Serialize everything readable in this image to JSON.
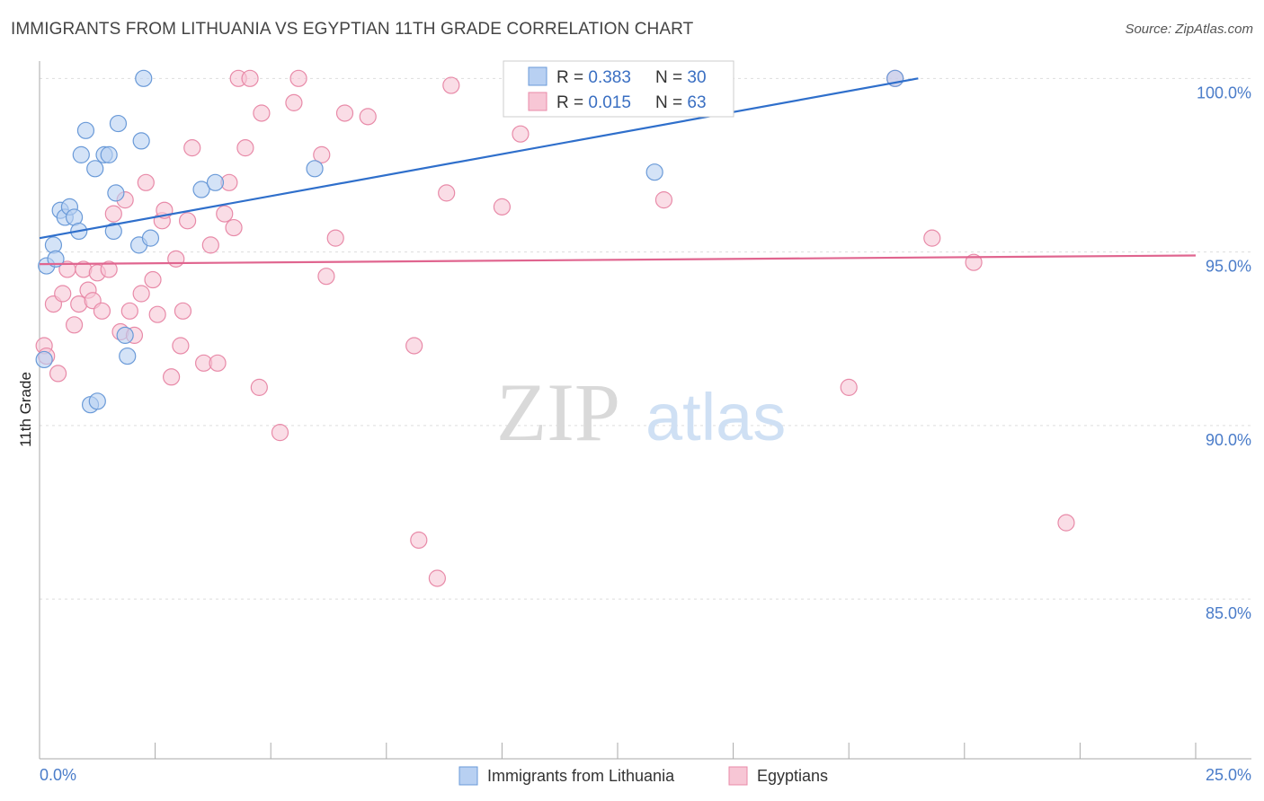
{
  "title": "IMMIGRANTS FROM LITHUANIA VS EGYPTIAN 11TH GRADE CORRELATION CHART",
  "source": "Source: ZipAtlas.com",
  "watermark": {
    "zip": "ZIP",
    "atlas": "atlas"
  },
  "colors": {
    "blue_fill": "#b8d0f2",
    "blue_stroke": "#6a9ad8",
    "blue_line": "#2f6fcb",
    "pink_fill": "#f7c6d5",
    "pink_stroke": "#e88aa8",
    "pink_line": "#e0658f",
    "grid": "#dddddd",
    "tick_text": "#4a7cc9"
  },
  "legend": {
    "rows": [
      {
        "r_label": "R = ",
        "r_value": "0.383",
        "n_label": "N = ",
        "n_value": "30"
      },
      {
        "r_label": "R = ",
        "r_value": "0.015",
        "n_label": "N = ",
        "n_value": "63"
      }
    ]
  },
  "chart_data": {
    "type": "scatter",
    "title": "IMMIGRANTS FROM LITHUANIA VS EGYPTIAN 11TH GRADE CORRELATION CHART",
    "xlabel": "",
    "ylabel": "11th Grade",
    "xlim": [
      0,
      25
    ],
    "ylim": [
      80.4,
      100.5
    ],
    "x_tick_labels": [
      "0.0%",
      "25.0%"
    ],
    "y_ticks": [
      85,
      90,
      95,
      100
    ],
    "y_tick_labels": [
      "85.0%",
      "90.0%",
      "95.0%",
      "100.0%"
    ],
    "grid": true,
    "legend_position": "top-center",
    "series": [
      {
        "name": "Immigrants from Lithuania",
        "r": 0.383,
        "n": 30,
        "trend": {
          "x": [
            0,
            19.0
          ],
          "y": [
            95.4,
            100.0
          ]
        },
        "points": [
          {
            "x": 0.1,
            "y": 91.9
          },
          {
            "x": 0.15,
            "y": 94.6
          },
          {
            "x": 0.3,
            "y": 95.2
          },
          {
            "x": 0.35,
            "y": 94.8
          },
          {
            "x": 0.45,
            "y": 96.2
          },
          {
            "x": 0.55,
            "y": 96.0
          },
          {
            "x": 0.65,
            "y": 96.3
          },
          {
            "x": 0.75,
            "y": 96.0
          },
          {
            "x": 0.85,
            "y": 95.6
          },
          {
            "x": 0.9,
            "y": 97.8
          },
          {
            "x": 1.0,
            "y": 98.5
          },
          {
            "x": 1.1,
            "y": 90.6
          },
          {
            "x": 1.2,
            "y": 97.4
          },
          {
            "x": 1.25,
            "y": 90.7
          },
          {
            "x": 1.4,
            "y": 97.8
          },
          {
            "x": 1.5,
            "y": 97.8
          },
          {
            "x": 1.6,
            "y": 95.6
          },
          {
            "x": 1.65,
            "y": 96.7
          },
          {
            "x": 1.7,
            "y": 98.7
          },
          {
            "x": 1.85,
            "y": 92.6
          },
          {
            "x": 1.9,
            "y": 92.0
          },
          {
            "x": 2.15,
            "y": 95.2
          },
          {
            "x": 2.2,
            "y": 98.2
          },
          {
            "x": 2.25,
            "y": 100.0
          },
          {
            "x": 2.4,
            "y": 95.4
          },
          {
            "x": 3.5,
            "y": 96.8
          },
          {
            "x": 3.8,
            "y": 97.0
          },
          {
            "x": 5.95,
            "y": 97.4
          },
          {
            "x": 13.3,
            "y": 97.3
          },
          {
            "x": 18.5,
            "y": 100.0
          }
        ]
      },
      {
        "name": "Egyptians",
        "r": 0.015,
        "n": 63,
        "trend": {
          "x": [
            0,
            25.0
          ],
          "y": [
            94.65,
            94.9
          ]
        },
        "points": [
          {
            "x": 0.1,
            "y": 92.3
          },
          {
            "x": 0.15,
            "y": 92.0
          },
          {
            "x": 0.3,
            "y": 93.5
          },
          {
            "x": 0.4,
            "y": 91.5
          },
          {
            "x": 0.5,
            "y": 93.8
          },
          {
            "x": 0.6,
            "y": 94.5
          },
          {
            "x": 0.75,
            "y": 92.9
          },
          {
            "x": 0.85,
            "y": 93.5
          },
          {
            "x": 0.95,
            "y": 94.5
          },
          {
            "x": 1.05,
            "y": 93.9
          },
          {
            "x": 1.15,
            "y": 93.6
          },
          {
            "x": 1.25,
            "y": 94.4
          },
          {
            "x": 1.35,
            "y": 93.3
          },
          {
            "x": 1.5,
            "y": 94.5
          },
          {
            "x": 1.6,
            "y": 96.1
          },
          {
            "x": 1.75,
            "y": 92.7
          },
          {
            "x": 1.85,
            "y": 96.5
          },
          {
            "x": 1.95,
            "y": 93.3
          },
          {
            "x": 2.05,
            "y": 92.6
          },
          {
            "x": 2.2,
            "y": 93.8
          },
          {
            "x": 2.3,
            "y": 97.0
          },
          {
            "x": 2.45,
            "y": 94.2
          },
          {
            "x": 2.55,
            "y": 93.2
          },
          {
            "x": 2.65,
            "y": 95.9
          },
          {
            "x": 2.7,
            "y": 96.2
          },
          {
            "x": 2.85,
            "y": 91.4
          },
          {
            "x": 2.95,
            "y": 94.8
          },
          {
            "x": 3.05,
            "y": 92.3
          },
          {
            "x": 3.1,
            "y": 93.3
          },
          {
            "x": 3.2,
            "y": 95.9
          },
          {
            "x": 3.3,
            "y": 98.0
          },
          {
            "x": 3.55,
            "y": 91.8
          },
          {
            "x": 3.7,
            "y": 95.2
          },
          {
            "x": 3.85,
            "y": 91.8
          },
          {
            "x": 4.0,
            "y": 96.1
          },
          {
            "x": 4.1,
            "y": 97.0
          },
          {
            "x": 4.2,
            "y": 95.7
          },
          {
            "x": 4.3,
            "y": 100.0
          },
          {
            "x": 4.45,
            "y": 98.0
          },
          {
            "x": 4.55,
            "y": 100.0
          },
          {
            "x": 4.75,
            "y": 91.1
          },
          {
            "x": 4.8,
            "y": 99.0
          },
          {
            "x": 5.2,
            "y": 89.8
          },
          {
            "x": 5.5,
            "y": 99.3
          },
          {
            "x": 5.6,
            "y": 100.0
          },
          {
            "x": 6.1,
            "y": 97.8
          },
          {
            "x": 6.2,
            "y": 94.3
          },
          {
            "x": 6.4,
            "y": 95.4
          },
          {
            "x": 6.6,
            "y": 99.0
          },
          {
            "x": 7.1,
            "y": 98.9
          },
          {
            "x": 8.1,
            "y": 92.3
          },
          {
            "x": 8.2,
            "y": 86.7
          },
          {
            "x": 8.6,
            "y": 85.6
          },
          {
            "x": 8.8,
            "y": 96.7
          },
          {
            "x": 8.9,
            "y": 99.8
          },
          {
            "x": 10.0,
            "y": 96.3
          },
          {
            "x": 10.4,
            "y": 98.4
          },
          {
            "x": 13.5,
            "y": 96.5
          },
          {
            "x": 17.5,
            "y": 91.1
          },
          {
            "x": 18.5,
            "y": 100.0
          },
          {
            "x": 19.3,
            "y": 95.4
          },
          {
            "x": 20.2,
            "y": 94.7
          },
          {
            "x": 22.2,
            "y": 87.2
          }
        ]
      }
    ]
  }
}
